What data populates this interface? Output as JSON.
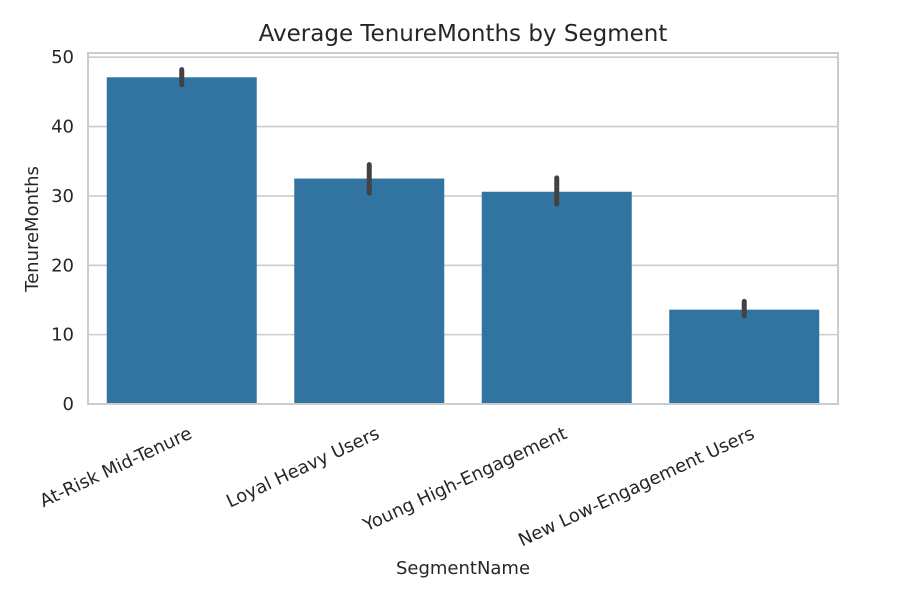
{
  "chart_data": {
    "type": "bar",
    "title": "Average TenureMonths by Segment",
    "xlabel": "SegmentName",
    "ylabel": "TenureMonths",
    "categories": [
      "At-Risk Mid-Tenure",
      "Loyal Heavy Users",
      "Young High-Engagement",
      "New Low-Engagement Users"
    ],
    "values": [
      47.1,
      32.5,
      30.6,
      13.6
    ],
    "error_low": [
      46.0,
      30.4,
      28.8,
      12.7
    ],
    "error_high": [
      48.2,
      34.5,
      32.6,
      14.8
    ],
    "ylim": [
      0,
      50.6
    ],
    "yticks": [
      0,
      10,
      20,
      30,
      40,
      50
    ],
    "grid": true,
    "legend": "none",
    "colors": {
      "bar": "#3274a1",
      "errorbar": "#424242",
      "grid": "#cccccc",
      "frame": "#cccccc",
      "text": "#262626"
    }
  }
}
